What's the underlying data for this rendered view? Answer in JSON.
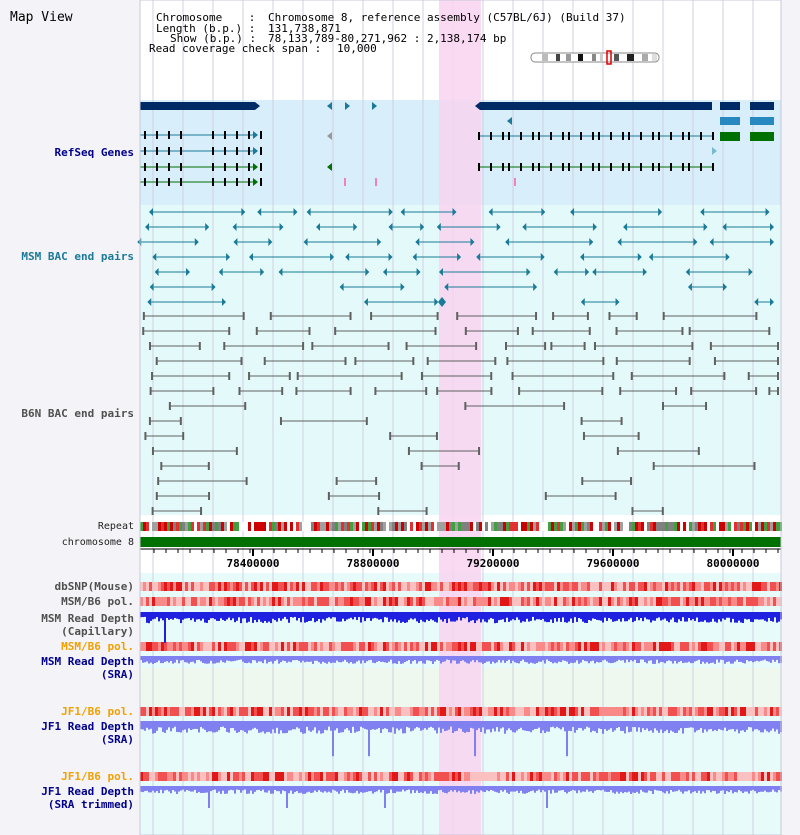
{
  "title": "Map View",
  "header": {
    "chromosome_label": "Chromosome    :",
    "chromosome_value": "Chromosome 8, reference assembly (C57BL/6J) (Build 37)",
    "length_label": "Length (b.p.) :",
    "length_value": "131,738,871",
    "show_label": "Show (b.p.) :",
    "show_value": "78,133,789-80,271,962 : 2,138,174 bp",
    "coverage_label": "Read coverage check span :",
    "coverage_value": "10,000"
  },
  "tracks": {
    "refseq": "RefSeq Genes",
    "msm_bac": "MSM BAC end pairs",
    "b6n_bac": "B6N BAC end pairs",
    "repeat": "Repeat",
    "chromosome": "chromosome 8",
    "dbsnp": "dbSNP(Mouse)",
    "msm_b6_pol_1": "MSM/B6 pol.",
    "msm_depth_cap_1": "MSM Read Depth",
    "msm_depth_cap_2": "(Capillary)",
    "msm_b6_pol_2": "MSM/B6 pol.",
    "msm_depth_sra_1": "MSM Read Depth",
    "msm_depth_sra_2": "(SRA)",
    "jf1_b6_pol_1": "JF1/B6 pol.",
    "jf1_depth_sra_1": "JF1 Read Depth",
    "jf1_depth_sra_2": "(SRA)",
    "jf1_b6_pol_2": "JF1/B6 pol.",
    "jf1_depth_trim_1": "JF1 Read Depth",
    "jf1_depth_trim_2": "(SRA trimmed)"
  },
  "axis_ticks": [
    "78400000",
    "78800000",
    "79200000",
    "79600000",
    "80000000"
  ],
  "colors": {
    "refseq_bg": "#d8eefa",
    "msm_bac_bg": "#e4fafa",
    "highlight": "#f8d4f0",
    "gene_dark": "#002a66",
    "gene_blue": "#2888c0",
    "gene_green": "#007000",
    "bac_teal": "#1a7a98",
    "bac_gray": "#606060",
    "chromosome_bar": "#007000",
    "depth_cap": "#2020e0",
    "depth_sra": "#8080f0",
    "track_label_blue": "#00008b",
    "track_label_teal": "#1a7a98",
    "track_label_orange": "#f0a000",
    "track_label_gray": "#505050"
  }
}
